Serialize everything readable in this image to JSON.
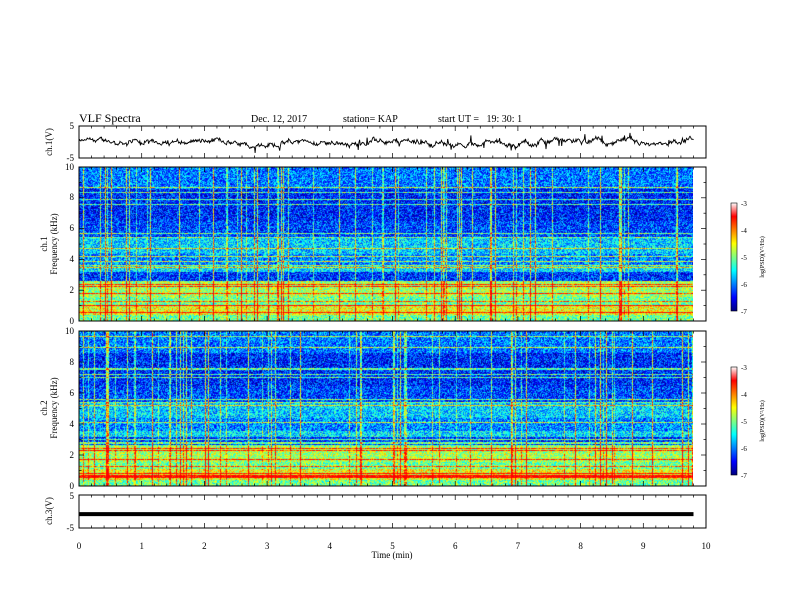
{
  "header": {
    "title": "VLF Spectra",
    "date": "Dec. 12, 2017",
    "station": "station= KAP",
    "start": "start UT =   19: 30: 1"
  },
  "colors": {
    "waveform": "#000000",
    "colormap": [
      "#00007f",
      "#0000ff",
      "#0080ff",
      "#00ffff",
      "#80ff80",
      "#ffff00",
      "#ff8000",
      "#ff0000",
      "#ffffff"
    ]
  },
  "chart_data": [
    {
      "type": "line",
      "panel": "ch1-waveform",
      "ylabel": "ch.1(V)",
      "ylim": [
        -5,
        5
      ],
      "yticks": [
        "5",
        "-5"
      ],
      "xlim": [
        0,
        10
      ],
      "trace_mean_approx": 0,
      "trace_amplitude_approx": 1.5
    },
    {
      "type": "heatmap",
      "panel": "ch1-spectrogram",
      "ylabel_lines": [
        "ch.1",
        "Frequency (kHz)"
      ],
      "ylim": [
        0,
        10
      ],
      "yticks": [
        "0",
        "2",
        "4",
        "6",
        "8",
        "10"
      ],
      "xlim": [
        0,
        9.83
      ],
      "colorbar": {
        "label": "log(PSD)(V²/Hz)",
        "range": [
          -7,
          -3
        ],
        "ticks": [
          "-3",
          "-4",
          "-5",
          "-6",
          "-7"
        ]
      }
    },
    {
      "type": "heatmap",
      "panel": "ch2-spectrogram",
      "ylabel_lines": [
        "ch.2",
        "Frequency (kHz)"
      ],
      "ylim": [
        0,
        10
      ],
      "yticks": [
        "0",
        "2",
        "4",
        "6",
        "8",
        "10"
      ],
      "xlim": [
        0,
        9.83
      ],
      "colorbar": {
        "label": "log(PSD)(V²/Hz)",
        "range": [
          -7,
          -3
        ],
        "ticks": [
          "-3",
          "-4",
          "-5",
          "-6",
          "-7"
        ]
      }
    },
    {
      "type": "line",
      "panel": "ch3-waveform",
      "ylabel": "ch.3(V)",
      "ylim": [
        -5,
        5
      ],
      "yticks": [
        "5",
        "-5"
      ],
      "xlim": [
        0,
        10
      ],
      "trace_value_approx": -0.8
    }
  ],
  "x_axis": {
    "label": "Time (min)",
    "ticks": [
      "0",
      "1",
      "2",
      "3",
      "4",
      "5",
      "6",
      "7",
      "8",
      "9",
      "10"
    ],
    "range": [
      0,
      10
    ]
  }
}
